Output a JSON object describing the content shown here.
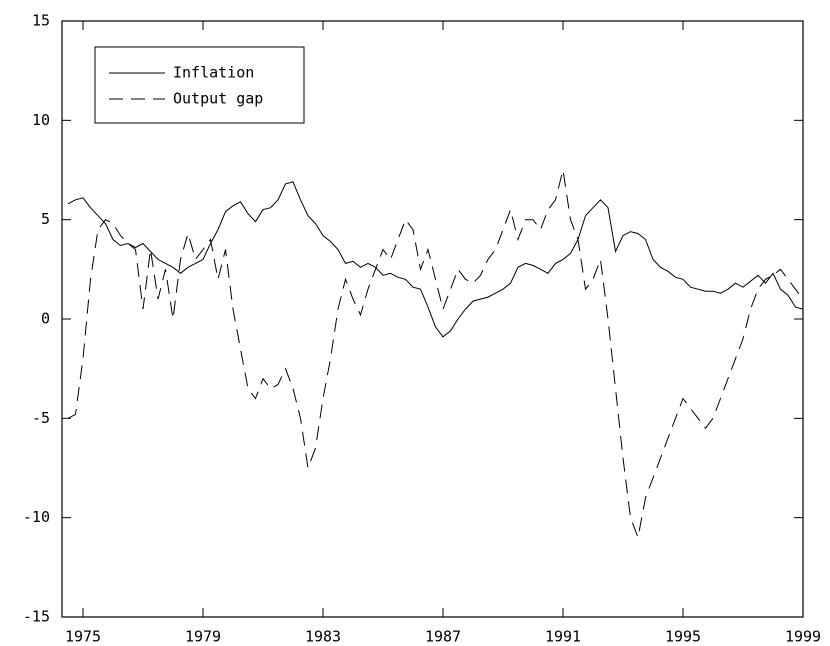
{
  "chart_data": {
    "type": "line",
    "x": [
      1974.5,
      1974.75,
      1975,
      1975.25,
      1975.5,
      1975.75,
      1976,
      1976.25,
      1976.5,
      1976.75,
      1977,
      1977.25,
      1977.5,
      1977.75,
      1978,
      1978.25,
      1978.5,
      1978.75,
      1979,
      1979.25,
      1979.5,
      1979.75,
      1980,
      1980.25,
      1980.5,
      1980.75,
      1981,
      1981.25,
      1981.5,
      1981.75,
      1982,
      1982.25,
      1982.5,
      1982.75,
      1983,
      1983.25,
      1983.5,
      1983.75,
      1984,
      1984.25,
      1984.5,
      1984.75,
      1985,
      1985.25,
      1985.5,
      1985.75,
      1986,
      1986.25,
      1986.5,
      1986.75,
      1987,
      1987.25,
      1987.5,
      1987.75,
      1988,
      1988.25,
      1988.5,
      1988.75,
      1989,
      1989.25,
      1989.5,
      1989.75,
      1990,
      1990.25,
      1990.5,
      1990.75,
      1991,
      1991.25,
      1991.5,
      1991.75,
      1992,
      1992.25,
      1992.5,
      1992.75,
      1993,
      1993.25,
      1993.5,
      1993.75,
      1994,
      1994.25,
      1994.5,
      1994.75,
      1995,
      1995.25,
      1995.5,
      1995.75,
      1996,
      1996.25,
      1996.5,
      1996.75,
      1997,
      1997.25,
      1997.5,
      1997.75,
      1998,
      1998.25,
      1998.5,
      1998.75,
      1999
    ],
    "series": [
      {
        "name": "Inflation",
        "color": "#000000",
        "line_style": "solid",
        "values": [
          5.8,
          6.0,
          6.1,
          5.6,
          5.2,
          4.8,
          4.0,
          3.7,
          3.8,
          3.6,
          3.8,
          3.4,
          3.0,
          2.8,
          2.6,
          2.3,
          2.6,
          2.8,
          3.0,
          3.8,
          4.5,
          5.4,
          5.7,
          5.9,
          5.3,
          4.9,
          5.5,
          5.6,
          6.0,
          6.8,
          6.9,
          6.0,
          5.2,
          4.8,
          4.2,
          3.9,
          3.5,
          2.8,
          2.9,
          2.6,
          2.8,
          2.6,
          2.2,
          2.3,
          2.1,
          2.0,
          1.6,
          1.5,
          0.6,
          -0.4,
          -0.9,
          -0.6,
          0.0,
          0.5,
          0.9,
          1.0,
          1.1,
          1.3,
          1.5,
          1.8,
          2.6,
          2.8,
          2.7,
          2.5,
          2.3,
          2.8,
          3.0,
          3.3,
          4.0,
          5.2,
          5.6,
          6.0,
          5.6,
          3.4,
          4.2,
          4.4,
          4.3,
          4.0,
          3.0,
          2.6,
          2.4,
          2.1,
          2.0,
          1.6,
          1.5,
          1.4,
          1.4,
          1.3,
          1.5,
          1.8,
          1.6,
          1.9,
          2.2,
          1.8,
          2.3,
          1.5,
          1.2,
          0.6,
          0.5
        ]
      },
      {
        "name": "Output gap",
        "color": "#000000",
        "line_style": "dashed",
        "values": [
          -5.0,
          -4.8,
          -2.0,
          2.0,
          4.5,
          5.0,
          4.8,
          4.2,
          3.8,
          3.5,
          0.5,
          3.5,
          1.0,
          2.5,
          0.0,
          3.0,
          4.3,
          3.0,
          3.5,
          4.0,
          2.0,
          3.5,
          0.5,
          -1.5,
          -3.5,
          -4.0,
          -3.0,
          -3.5,
          -3.3,
          -2.5,
          -3.5,
          -5.0,
          -7.5,
          -6.5,
          -4.0,
          -2.0,
          0.5,
          2.0,
          1.0,
          0.2,
          1.5,
          2.5,
          3.5,
          3.0,
          4.0,
          5.0,
          4.5,
          2.5,
          3.5,
          2.0,
          0.5,
          1.5,
          2.5,
          2.0,
          1.8,
          2.2,
          3.0,
          3.5,
          4.5,
          5.5,
          4.0,
          5.0,
          5.0,
          4.5,
          5.5,
          6.0,
          7.5,
          5.0,
          4.0,
          1.5,
          2.0,
          3.0,
          0.0,
          -3.5,
          -7.0,
          -10.0,
          -11.0,
          -9.0,
          -8.0,
          -7.0,
          -6.0,
          -5.0,
          -4.0,
          -4.5,
          -5.0,
          -5.5,
          -5.0,
          -4.0,
          -3.0,
          -2.0,
          -1.0,
          0.5,
          1.5,
          2.0,
          2.2,
          2.5,
          2.0,
          1.5,
          1.0
        ]
      }
    ],
    "xlim": [
      1974.3,
      1999
    ],
    "xticks": [
      1975,
      1979,
      1983,
      1987,
      1991,
      1995,
      1999
    ],
    "ylim": [
      -15,
      15
    ],
    "yticks": [
      -15,
      -10,
      -5,
      0,
      5,
      10,
      15
    ],
    "legend": "upper left"
  }
}
